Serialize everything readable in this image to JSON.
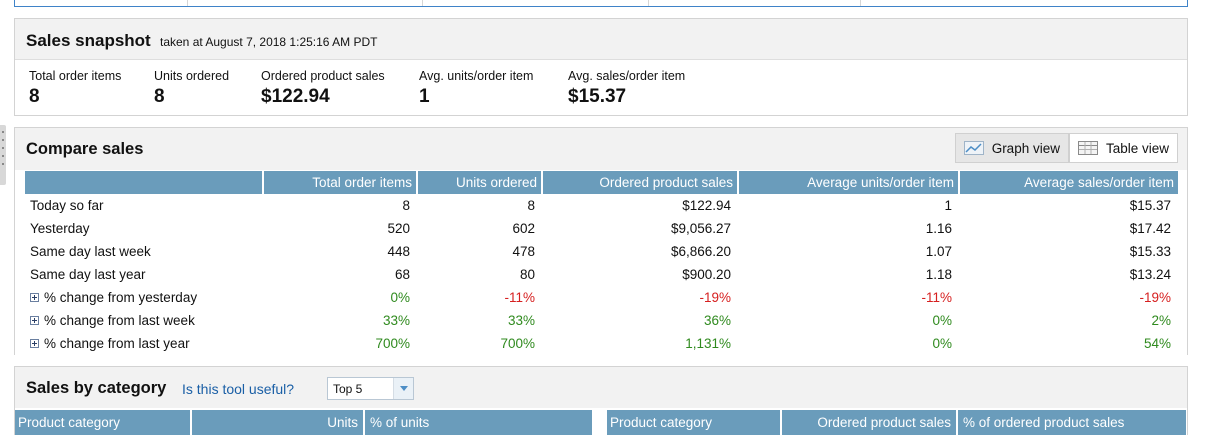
{
  "snapshot": {
    "title": "Sales snapshot",
    "subtitle": "taken at August 7, 2018 1:25:16 AM PDT",
    "metrics": [
      {
        "label": "Total order items",
        "value": "8"
      },
      {
        "label": "Units ordered",
        "value": "8"
      },
      {
        "label": "Ordered product sales",
        "value": "$122.94"
      },
      {
        "label": "Avg. units/order item",
        "value": "1"
      },
      {
        "label": "Avg. sales/order item",
        "value": "$15.37"
      }
    ]
  },
  "compare": {
    "title": "Compare sales",
    "graph_view_label": "Graph view",
    "table_view_label": "Table view",
    "headers": [
      "",
      "Total order items",
      "Units ordered",
      "Ordered product sales",
      "Average units/order item",
      "Average sales/order item"
    ],
    "rows": [
      {
        "label": "Today so far",
        "values": [
          "8",
          "8",
          "$122.94",
          "1",
          "$15.37"
        ],
        "colors": [
          "",
          "",
          "",
          "",
          ""
        ]
      },
      {
        "label": "Yesterday",
        "values": [
          "520",
          "602",
          "$9,056.27",
          "1.16",
          "$17.42"
        ],
        "colors": [
          "",
          "",
          "",
          "",
          ""
        ]
      },
      {
        "label": "Same day last week",
        "values": [
          "448",
          "478",
          "$6,866.20",
          "1.07",
          "$15.33"
        ],
        "colors": [
          "",
          "",
          "",
          "",
          ""
        ]
      },
      {
        "label": "Same day last year",
        "values": [
          "68",
          "80",
          "$900.20",
          "1.18",
          "$13.24"
        ],
        "colors": [
          "",
          "",
          "",
          "",
          ""
        ]
      },
      {
        "label": "% change from yesterday",
        "expandable": true,
        "values": [
          "0%",
          "-11%",
          "-19%",
          "-11%",
          "-19%"
        ],
        "colors": [
          "pos",
          "neg",
          "neg",
          "neg",
          "neg"
        ]
      },
      {
        "label": "% change from last week",
        "expandable": true,
        "values": [
          "33%",
          "33%",
          "36%",
          "0%",
          "2%"
        ],
        "colors": [
          "pos",
          "pos",
          "pos",
          "pos",
          "pos"
        ]
      },
      {
        "label": "% change from last year",
        "expandable": true,
        "values": [
          "700%",
          "700%",
          "1,131%",
          "0%",
          "54%"
        ],
        "colors": [
          "pos",
          "pos",
          "pos",
          "pos",
          "pos"
        ]
      }
    ]
  },
  "category": {
    "title": "Sales by category",
    "link": "Is this tool useful?",
    "select_value": "Top 5",
    "left_headers": [
      "Product category",
      "Units",
      "% of units"
    ],
    "right_headers": [
      "Product category",
      "Ordered product sales",
      "% of ordered product sales"
    ]
  },
  "colors": {
    "header_blue": "#6a9cbb",
    "positive": "#2f8a1e",
    "negative": "#d62020",
    "link": "#1a5fa6"
  }
}
